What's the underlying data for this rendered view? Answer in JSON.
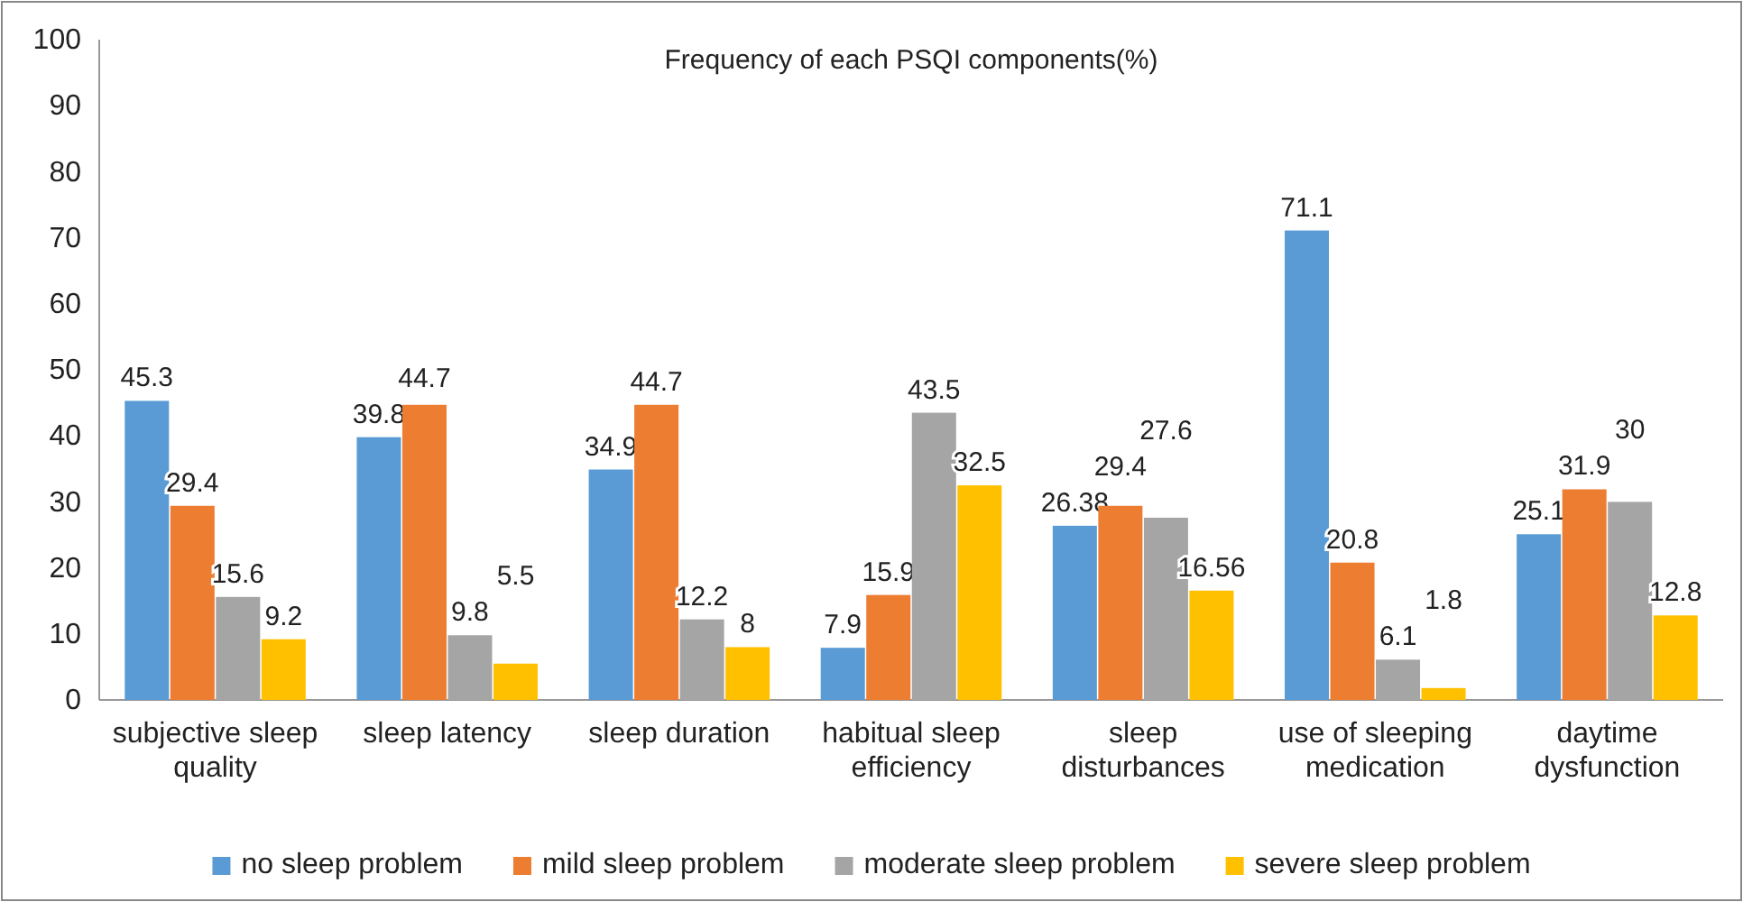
{
  "chart_data": {
    "type": "bar",
    "title": "Frequency of each PSQI components(%)",
    "categories": [
      "subjective sleep quality",
      "sleep latency",
      "sleep duration",
      "habitual sleep efficiency",
      "sleep disturbances",
      "use of sleeping medication",
      "daytime dysfunction"
    ],
    "series": [
      {
        "name": "no sleep problem",
        "color": "#5b9bd5",
        "values": [
          45.3,
          39.8,
          34.9,
          7.9,
          26.38,
          71.1,
          25.1
        ]
      },
      {
        "name": "mild sleep problem",
        "color": "#ed7d31",
        "values": [
          29.4,
          44.7,
          44.7,
          15.9,
          29.4,
          20.8,
          31.9
        ]
      },
      {
        "name": "moderate sleep problem",
        "color": "#a5a5a5",
        "values": [
          15.6,
          9.8,
          12.2,
          43.5,
          27.6,
          6.1,
          30
        ]
      },
      {
        "name": "severe sleep problem",
        "color": "#ffc000",
        "values": [
          9.2,
          5.5,
          8,
          32.5,
          16.56,
          1.8,
          12.8
        ]
      }
    ],
    "ylim": [
      0,
      100
    ],
    "yticks": [
      0,
      10,
      20,
      30,
      40,
      50,
      60,
      70,
      80,
      90,
      100
    ],
    "grid": false,
    "legend": "bottom",
    "data_labels": true
  }
}
